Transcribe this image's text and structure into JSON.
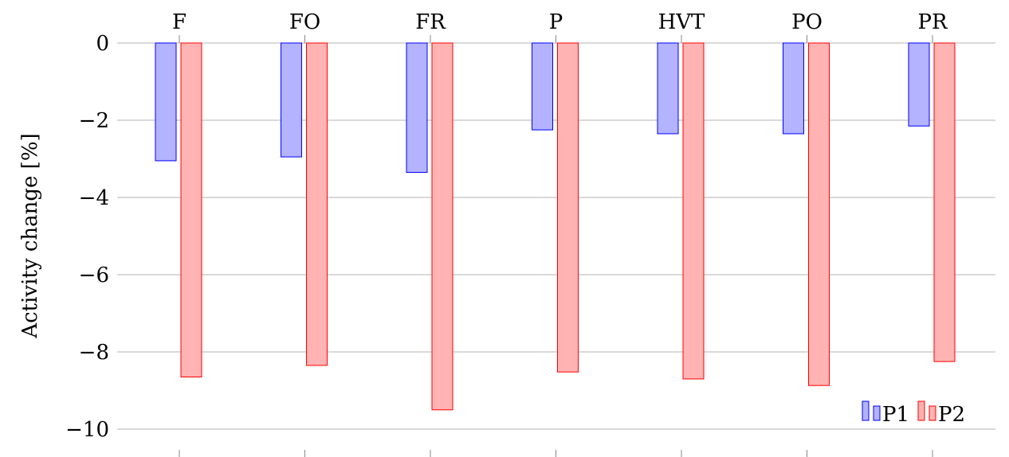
{
  "chart_data": {
    "type": "bar",
    "categories": [
      "F",
      "FO",
      "FR",
      "P",
      "HVT",
      "PO",
      "PR"
    ],
    "series": [
      {
        "name": "P1",
        "values": [
          -3.05,
          -2.95,
          -3.35,
          -2.25,
          -2.35,
          -2.35,
          -2.15
        ],
        "color": "#0000ff",
        "fill": "#b3b3ff"
      },
      {
        "name": "P2",
        "values": [
          -8.65,
          -8.35,
          -9.5,
          -8.52,
          -8.7,
          -8.87,
          -8.25
        ],
        "color": "#ff0000",
        "fill": "#ffb3b3"
      }
    ],
    "ylabel": "Activity change [%]",
    "ylim": [
      -10,
      0
    ],
    "yticks": [
      0,
      -2,
      -4,
      -6,
      -8,
      -10
    ],
    "ytick_labels": [
      "0",
      "−2",
      "−4",
      "−6",
      "−8",
      "−10"
    ],
    "grid": true,
    "legend_position": "bottom-right",
    "category_axis_position": "top"
  }
}
